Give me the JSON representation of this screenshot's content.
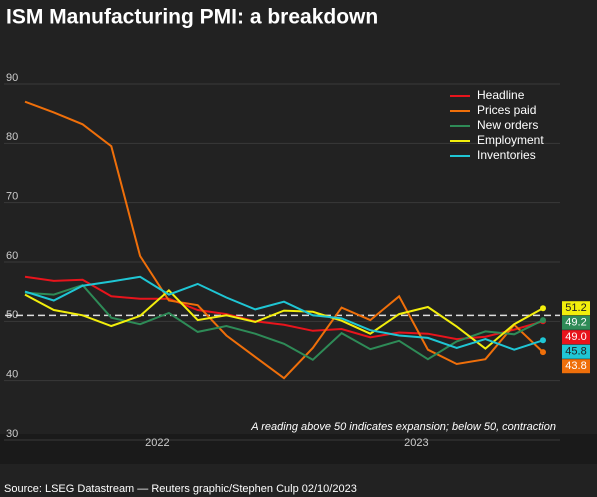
{
  "chart_data": {
    "type": "line",
    "title": "ISM Manufacturing PMI: a breakdown",
    "categories": [
      null,
      null,
      null,
      null,
      null,
      "2022",
      null,
      null,
      null,
      null,
      null,
      null,
      null,
      null,
      "2023",
      null,
      null,
      null,
      null
    ],
    "series": [
      {
        "name": "Headline",
        "color": "#e8141c",
        "values": [
          56.5,
          55.8,
          56.0,
          53.2,
          52.8,
          52.8,
          50.9,
          50.2,
          49.0,
          48.4,
          47.4,
          47.7,
          46.3,
          47.1,
          46.9,
          46.0,
          46.4,
          47.6,
          49.0
        ],
        "value_labels": [
          null,
          null,
          null,
          null,
          null,
          null,
          null,
          null,
          null,
          null,
          null,
          null,
          null,
          null,
          null,
          null,
          null,
          null,
          "49.0"
        ]
      },
      {
        "name": "Prices paid",
        "color": "#ef6f0a",
        "values": [
          86.0,
          84.2,
          82.2,
          78.5,
          60.0,
          52.5,
          51.7,
          46.6,
          43.0,
          39.4,
          44.5,
          51.3,
          49.2,
          53.2,
          44.2,
          41.8,
          42.6,
          48.4,
          43.8
        ],
        "value_labels": [
          null,
          null,
          null,
          null,
          null,
          null,
          null,
          null,
          null,
          null,
          null,
          null,
          null,
          null,
          null,
          null,
          null,
          null,
          "43.8"
        ]
      },
      {
        "name": "New orders",
        "color": "#2e8b57",
        "values": [
          53.8,
          53.5,
          55.1,
          49.6,
          48.5,
          50.4,
          47.2,
          48.2,
          46.9,
          45.2,
          42.5,
          47.0,
          44.3,
          45.7,
          42.6,
          45.6,
          47.3,
          46.8,
          49.2
        ],
        "value_labels": [
          null,
          null,
          null,
          null,
          null,
          null,
          null,
          null,
          null,
          null,
          null,
          null,
          null,
          null,
          null,
          null,
          null,
          null,
          "49.2"
        ]
      },
      {
        "name": "Employment",
        "color": "#f2ee0c",
        "values": [
          53.5,
          50.9,
          50.0,
          48.2,
          49.9,
          54.2,
          49.2,
          50.0,
          48.9,
          50.8,
          50.6,
          49.1,
          46.9,
          50.2,
          51.4,
          48.1,
          44.4,
          48.5,
          51.2
        ],
        "value_labels": [
          null,
          null,
          null,
          null,
          null,
          null,
          null,
          null,
          null,
          null,
          null,
          null,
          null,
          null,
          null,
          null,
          null,
          null,
          "51.2"
        ]
      },
      {
        "name": "Inventories",
        "color": "#1fc6d4",
        "values": [
          54.0,
          52.5,
          55.0,
          55.7,
          56.5,
          53.5,
          55.3,
          53.0,
          51.0,
          52.3,
          50.0,
          49.5,
          47.5,
          46.6,
          46.2,
          44.5,
          46.0,
          44.2,
          45.8
        ],
        "value_labels": [
          null,
          null,
          null,
          null,
          null,
          null,
          null,
          null,
          null,
          null,
          null,
          null,
          null,
          null,
          null,
          null,
          null,
          null,
          "45.8"
        ]
      }
    ],
    "ylim": [
      30,
      90
    ],
    "yticks": [
      30,
      40,
      50,
      60,
      70,
      80,
      90
    ],
    "grid": true,
    "reference_line": 50,
    "legend": "top-right",
    "annotation": "A reading above 50 indicates expansion; below 50, contraction",
    "source": "Source: LSEG Datastream — Reuters graphic/Stephen Culp 02/10/2023"
  }
}
